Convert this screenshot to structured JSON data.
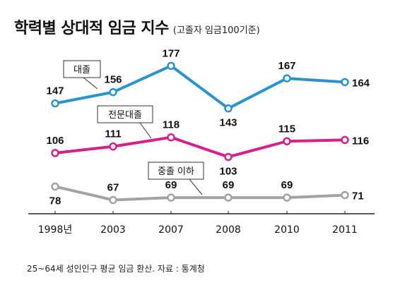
{
  "header": {
    "title": "학력별 상대적 임금 지수",
    "subtitle": "(고졸자 임금100기준)"
  },
  "footer": {
    "note": "25~64세 성인인구 평균 임금 환산. 자료 : 통계청"
  },
  "colors": {
    "college": "#2a93cf",
    "junior_college": "#d61f8c",
    "middle_school": "#a3a3a3",
    "axis": "#222222",
    "text": "#111111"
  },
  "chart_data": {
    "type": "line",
    "categories": [
      "1998년",
      "2003",
      "2007",
      "2008",
      "2010",
      "2011"
    ],
    "series": [
      {
        "name": "대졸",
        "values": [
          147,
          156,
          177,
          143,
          167,
          164
        ]
      },
      {
        "name": "전문대졸",
        "values": [
          106,
          111,
          118,
          103,
          115,
          116
        ]
      },
      {
        "name": "중졸 이하",
        "values": [
          78,
          67,
          69,
          69,
          69,
          71
        ]
      }
    ],
    "title": "학력별 상대적 임금 지수",
    "subtitle": "(고졸자 임금100기준)",
    "xlabel": "",
    "ylabel": "",
    "grid": false,
    "legend": "inline callouts"
  }
}
